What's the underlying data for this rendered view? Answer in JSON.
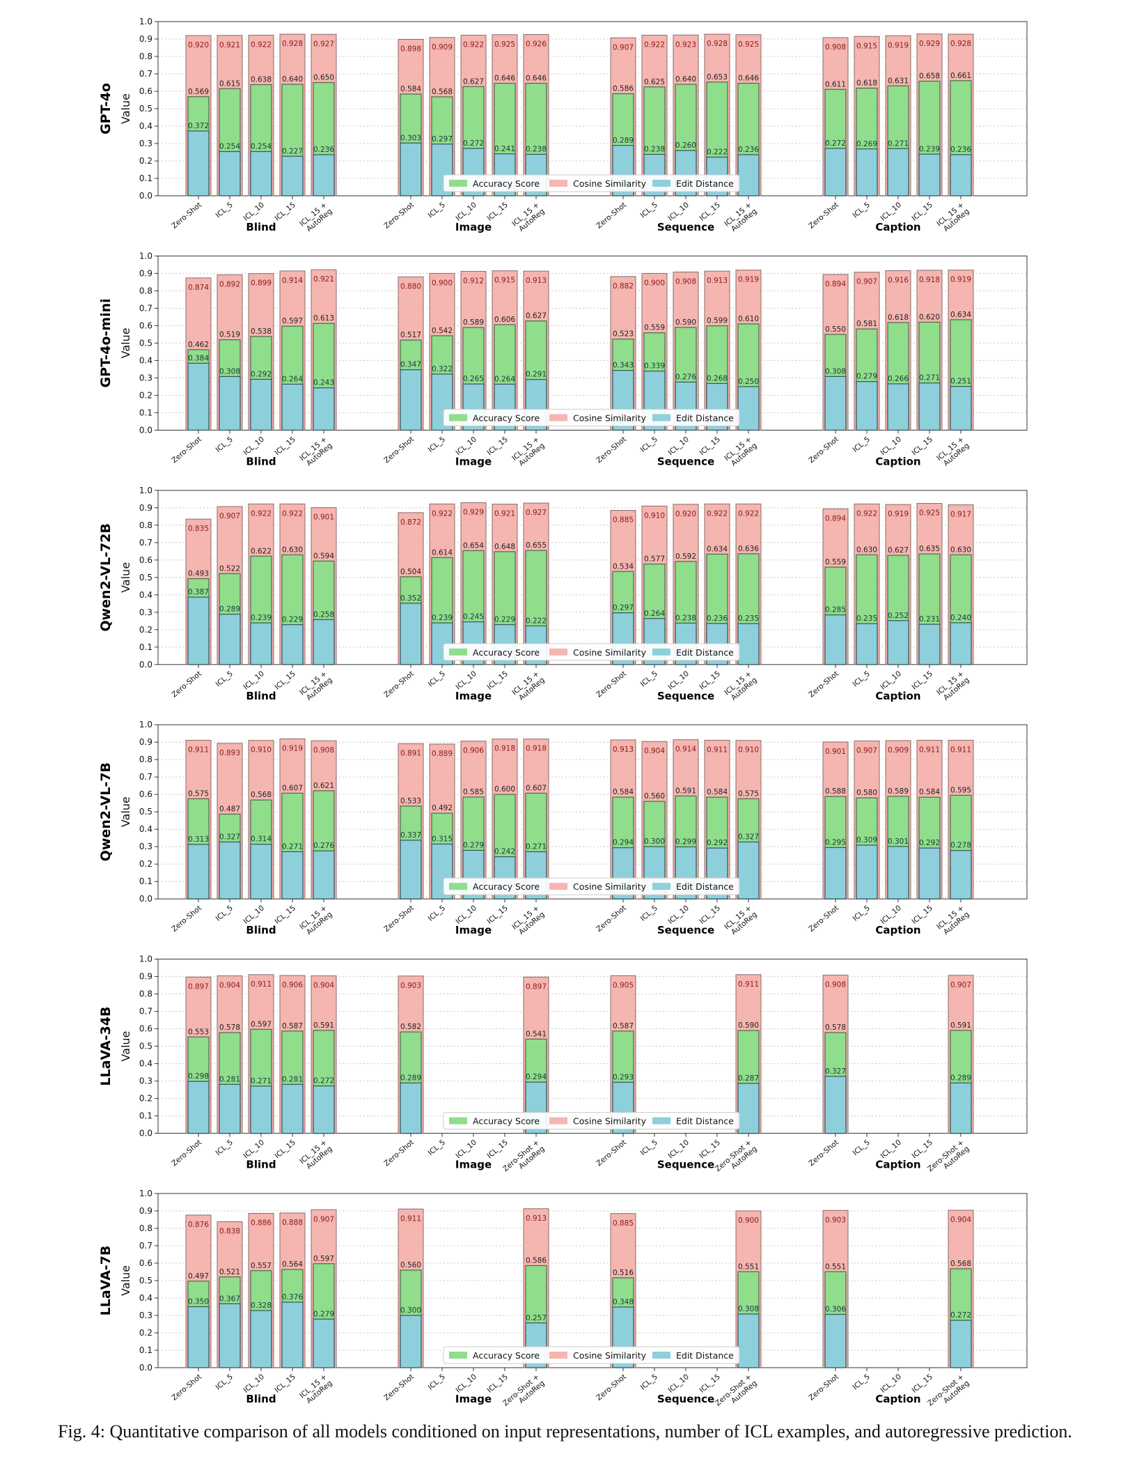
{
  "caption": "Fig. 4: Quantitative comparison of all models conditioned on input representations, number of ICL examples, and autoregressive prediction.",
  "chart_data": {
    "type": "bar",
    "ylabel": "Value",
    "ylim": [
      0.0,
      1.0
    ],
    "yticks": [
      "0.0",
      "0.1",
      "0.2",
      "0.3",
      "0.4",
      "0.5",
      "0.6",
      "0.7",
      "0.8",
      "0.9",
      "1.0"
    ],
    "grid": "horizontal dotted",
    "legend_placement": "lower-center",
    "legend": [
      "Accuracy Score",
      "Cosine Similarity",
      "Edit Distance"
    ],
    "colors": {
      "accuracy": "#90dd8c",
      "cosine": "#f5b5b0",
      "edit": "#8ecfdc",
      "cosine_label": "#8b1a1a",
      "accuracy_label": "#222222",
      "edit_label": "#1a3a3a"
    },
    "groups": [
      "Blind",
      "Image",
      "Sequence",
      "Caption"
    ],
    "categories_full": [
      "Zero-Shot",
      "ICL_5",
      "ICL_10",
      "ICL_15",
      "ICL_15 +\nAutoReg"
    ],
    "categories_zeroshot": [
      "Zero-Shot",
      "ICL_5",
      "ICL_10",
      "ICL_15",
      "Zero-Shot +\nAutoReg"
    ],
    "panels": [
      {
        "model": "GPT-4o",
        "groups": [
          {
            "cat": "full",
            "cos": [
              0.92,
              0.921,
              0.922,
              0.928,
              0.927
            ],
            "acc": [
              0.569,
              0.615,
              0.638,
              0.64,
              0.65
            ],
            "edit": [
              0.372,
              0.254,
              0.254,
              0.227,
              0.236
            ]
          },
          {
            "cat": "full",
            "cos": [
              0.898,
              0.909,
              0.922,
              0.925,
              0.926
            ],
            "acc": [
              0.584,
              0.568,
              0.627,
              0.646,
              0.646
            ],
            "edit": [
              0.303,
              0.297,
              0.272,
              0.241,
              0.238
            ]
          },
          {
            "cat": "full",
            "cos": [
              0.907,
              0.922,
              0.923,
              0.928,
              0.925
            ],
            "acc": [
              0.586,
              0.625,
              0.64,
              0.653,
              0.646
            ],
            "edit": [
              0.289,
              0.238,
              0.26,
              0.222,
              0.236
            ]
          },
          {
            "cat": "full",
            "cos": [
              0.908,
              0.915,
              0.919,
              0.929,
              0.928
            ],
            "acc": [
              0.611,
              0.618,
              0.631,
              0.658,
              0.661
            ],
            "edit": [
              0.272,
              0.269,
              0.271,
              0.239,
              0.236
            ]
          }
        ]
      },
      {
        "model": "GPT-4o-mini",
        "groups": [
          {
            "cat": "full",
            "cos": [
              0.874,
              0.892,
              0.899,
              0.914,
              0.921
            ],
            "acc": [
              0.462,
              0.519,
              0.538,
              0.597,
              0.613
            ],
            "edit": [
              0.384,
              0.308,
              0.292,
              0.264,
              0.243
            ]
          },
          {
            "cat": "full",
            "cos": [
              0.88,
              0.9,
              0.912,
              0.915,
              0.913
            ],
            "acc": [
              0.517,
              0.542,
              0.589,
              0.606,
              0.627
            ],
            "edit": [
              0.347,
              0.322,
              0.265,
              0.264,
              0.291
            ]
          },
          {
            "cat": "full",
            "cos": [
              0.882,
              0.9,
              0.908,
              0.913,
              0.919
            ],
            "acc": [
              0.523,
              0.559,
              0.59,
              0.599,
              0.61
            ],
            "edit": [
              0.343,
              0.339,
              0.276,
              0.268,
              0.25
            ]
          },
          {
            "cat": "full",
            "cos": [
              0.894,
              0.907,
              0.916,
              0.918,
              0.919
            ],
            "acc": [
              0.55,
              0.581,
              0.618,
              0.62,
              0.634
            ],
            "edit": [
              0.308,
              0.279,
              0.266,
              0.271,
              0.251
            ]
          }
        ]
      },
      {
        "model": "Qwen2-VL-72B",
        "groups": [
          {
            "cat": "full",
            "cos": [
              0.835,
              0.907,
              0.922,
              0.922,
              0.901
            ],
            "acc": [
              0.493,
              0.522,
              0.622,
              0.63,
              0.594
            ],
            "edit": [
              0.387,
              0.289,
              0.239,
              0.229,
              0.258
            ]
          },
          {
            "cat": "full",
            "cos": [
              0.872,
              0.922,
              0.929,
              0.921,
              0.927
            ],
            "acc": [
              0.504,
              0.614,
              0.654,
              0.648,
              0.655
            ],
            "edit": [
              0.352,
              0.239,
              0.245,
              0.229,
              0.222
            ]
          },
          {
            "cat": "full",
            "cos": [
              0.885,
              0.91,
              0.92,
              0.922,
              0.922
            ],
            "acc": [
              0.534,
              0.577,
              0.592,
              0.634,
              0.636
            ],
            "edit": [
              0.297,
              0.264,
              0.238,
              0.236,
              0.235
            ]
          },
          {
            "cat": "full",
            "cos": [
              0.894,
              0.922,
              0.919,
              0.925,
              0.917
            ],
            "acc": [
              0.559,
              0.63,
              0.627,
              0.635,
              0.63
            ],
            "edit": [
              0.285,
              0.235,
              0.252,
              0.231,
              0.24
            ]
          }
        ]
      },
      {
        "model": "Qwen2-VL-7B",
        "groups": [
          {
            "cat": "full",
            "cos": [
              0.911,
              0.893,
              0.91,
              0.919,
              0.908
            ],
            "acc": [
              0.575,
              0.487,
              0.568,
              0.607,
              0.621
            ],
            "edit": [
              0.313,
              0.327,
              0.314,
              0.271,
              0.276
            ]
          },
          {
            "cat": "full",
            "cos": [
              0.891,
              0.889,
              0.906,
              0.918,
              0.918
            ],
            "acc": [
              0.533,
              0.492,
              0.585,
              0.6,
              0.607
            ],
            "edit": [
              0.337,
              0.315,
              0.279,
              0.242,
              0.271
            ]
          },
          {
            "cat": "full",
            "cos": [
              0.913,
              0.904,
              0.914,
              0.911,
              0.91
            ],
            "acc": [
              0.584,
              0.56,
              0.591,
              0.584,
              0.575
            ],
            "edit": [
              0.294,
              0.3,
              0.299,
              0.292,
              0.327
            ]
          },
          {
            "cat": "full",
            "cos": [
              0.901,
              0.907,
              0.909,
              0.911,
              0.911
            ],
            "acc": [
              0.588,
              0.58,
              0.589,
              0.584,
              0.595
            ],
            "edit": [
              0.295,
              0.309,
              0.301,
              0.292,
              0.278
            ]
          }
        ]
      },
      {
        "model": "LLaVA-34B",
        "groups": [
          {
            "cat": "full",
            "cos": [
              0.897,
              0.904,
              0.911,
              0.906,
              0.904
            ],
            "acc": [
              0.553,
              0.578,
              0.597,
              0.587,
              0.591
            ],
            "edit": [
              0.298,
              0.281,
              0.271,
              0.281,
              0.272
            ]
          },
          {
            "cat": "zs",
            "cos": [
              0.903,
              null,
              null,
              null,
              0.897
            ],
            "acc": [
              0.582,
              null,
              null,
              null,
              0.541
            ],
            "edit": [
              0.289,
              null,
              null,
              null,
              0.294
            ]
          },
          {
            "cat": "zs",
            "cos": [
              0.905,
              null,
              null,
              null,
              0.911
            ],
            "acc": [
              0.587,
              null,
              null,
              null,
              0.59
            ],
            "edit": [
              0.293,
              null,
              null,
              null,
              0.287
            ]
          },
          {
            "cat": "zs",
            "cos": [
              0.908,
              null,
              null,
              null,
              0.907
            ],
            "acc": [
              0.578,
              null,
              null,
              null,
              0.591
            ],
            "edit": [
              0.327,
              null,
              null,
              null,
              0.289
            ]
          }
        ]
      },
      {
        "model": "LLaVA-7B",
        "groups": [
          {
            "cat": "full",
            "cos": [
              0.876,
              0.838,
              0.886,
              0.888,
              0.907
            ],
            "acc": [
              0.497,
              0.521,
              0.557,
              0.564,
              0.597
            ],
            "edit": [
              0.35,
              0.367,
              0.328,
              0.376,
              0.279
            ]
          },
          {
            "cat": "zs",
            "cos": [
              0.911,
              null,
              null,
              null,
              0.913
            ],
            "acc": [
              0.56,
              null,
              null,
              null,
              0.586
            ],
            "edit": [
              0.3,
              null,
              null,
              null,
              0.257
            ]
          },
          {
            "cat": "zs",
            "cos": [
              0.885,
              null,
              null,
              null,
              0.9
            ],
            "acc": [
              0.516,
              null,
              null,
              null,
              0.551
            ],
            "edit": [
              0.348,
              null,
              null,
              null,
              0.308
            ]
          },
          {
            "cat": "zs",
            "cos": [
              0.903,
              null,
              null,
              null,
              0.904
            ],
            "acc": [
              0.551,
              null,
              null,
              null,
              0.568
            ],
            "edit": [
              0.306,
              null,
              null,
              null,
              0.272
            ]
          }
        ]
      }
    ]
  }
}
